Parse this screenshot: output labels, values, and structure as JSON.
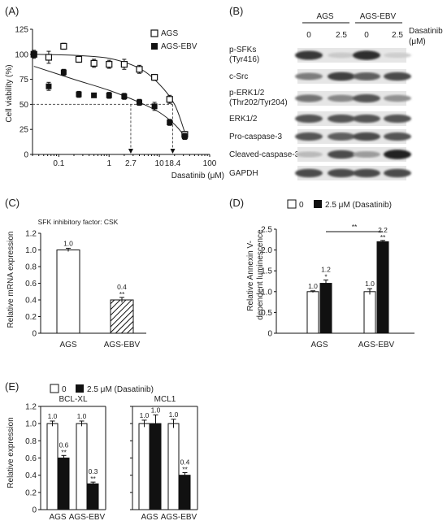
{
  "chart_data": [
    {
      "id": "A",
      "type": "scatter",
      "panel_label": "(A)",
      "xlabel": "Dasatinib (μM)",
      "ylabel": "Cell viability (%)",
      "x_scale": "log",
      "xlim": [
        0.03,
        100
      ],
      "ylim": [
        0,
        125
      ],
      "x_ticks": [
        "0.1",
        "1",
        "10",
        "100"
      ],
      "y_ticks": [
        "0",
        "25",
        "50",
        "75",
        "100",
        "125"
      ],
      "legend": [
        "AGS",
        "AGS-EBV"
      ],
      "legend_position": "top-right",
      "series": [
        {
          "name": "AGS",
          "marker": "open-square",
          "x": [
            0.032,
            0.063,
            0.125,
            0.25,
            0.5,
            1,
            2,
            4,
            8,
            16,
            32
          ],
          "y": [
            100,
            97,
            108,
            95,
            91,
            90,
            90,
            85,
            77,
            55,
            20
          ],
          "err": [
            4,
            6,
            3,
            3,
            4,
            4,
            5,
            4,
            3,
            4,
            3
          ]
        },
        {
          "name": "AGS-EBV",
          "marker": "filled-square",
          "x": [
            0.032,
            0.063,
            0.125,
            0.25,
            0.5,
            1,
            2,
            4,
            8,
            16,
            32
          ],
          "y": [
            100,
            68,
            82,
            60,
            59,
            59,
            58,
            52,
            48,
            32,
            18
          ],
          "err": [
            3,
            4,
            3,
            3,
            2,
            3,
            3,
            3,
            4,
            3,
            3
          ]
        }
      ],
      "annotations": [
        {
          "text": "2.7",
          "x": 2.7,
          "y": 50
        },
        {
          "text": "18.4",
          "x": 18.4,
          "y": 50
        }
      ]
    },
    {
      "id": "C",
      "type": "bar",
      "panel_label": "(C)",
      "title": "SFK inhibitory factor: CSK",
      "ylabel": "Relative mRNA expression",
      "categories": [
        "AGS",
        "AGS-EBV"
      ],
      "values": [
        1.0,
        0.4
      ],
      "errors": [
        0.02,
        0.03
      ],
      "value_labels": [
        "1.0",
        "0.4"
      ],
      "significance": [
        "",
        "**"
      ],
      "ylim": [
        0,
        1.2
      ],
      "y_ticks": [
        "0",
        "0.2",
        "0.4",
        "0.6",
        "0.8",
        "1.0",
        "1.2"
      ]
    },
    {
      "id": "D",
      "type": "bar",
      "panel_label": "(D)",
      "ylabel": "Relative Annexin V-dependent luminescence",
      "legend": [
        "0",
        "2.5 μM (Dasatinib)"
      ],
      "legend_position": "top",
      "categories": [
        "AGS",
        "AGS-EBV"
      ],
      "series": [
        {
          "name": "0",
          "values": [
            1.0,
            1.0
          ],
          "errors": [
            0.02,
            0.07
          ],
          "labels": [
            "1.0",
            "1.0"
          ],
          "sig": [
            "",
            ""
          ]
        },
        {
          "name": "2.5 μM (Dasatinib)",
          "values": [
            1.2,
            2.2
          ],
          "errors": [
            0.08,
            0.03
          ],
          "labels": [
            "1.2",
            "2.2"
          ],
          "sig": [
            "*",
            "**"
          ]
        }
      ],
      "bracket": "**",
      "ylim": [
        0,
        2.5
      ],
      "y_ticks": [
        "0",
        "0.5",
        "1.0",
        "1.5",
        "2.0",
        "2.5"
      ]
    },
    {
      "id": "E",
      "type": "bar",
      "panel_label": "(E)",
      "ylabel": "Relative expression",
      "legend": [
        "0",
        "2.5 μM (Dasatinib)"
      ],
      "legend_position": "top",
      "ylim": [
        0,
        1.2
      ],
      "y_ticks": [
        "0",
        "0.2",
        "0.4",
        "0.6",
        "0.8",
        "1.0",
        "1.2"
      ],
      "subplots": [
        {
          "title": "BCL-XL",
          "categories": [
            "AGS",
            "AGS-EBV"
          ],
          "series": [
            {
              "name": "0",
              "values": [
                1.0,
                1.0
              ],
              "errors": [
                0.03,
                0.03
              ],
              "labels": [
                "1.0",
                "1.0"
              ],
              "sig": [
                "",
                ""
              ]
            },
            {
              "name": "2.5 μM (Dasatinib)",
              "values": [
                0.6,
                0.3
              ],
              "errors": [
                0.03,
                0.02
              ],
              "labels": [
                "0.6",
                "0.3"
              ],
              "sig": [
                "**",
                "**"
              ]
            }
          ]
        },
        {
          "title": "MCL1",
          "categories": [
            "AGS",
            "AGS-EBV"
          ],
          "series": [
            {
              "name": "0",
              "values": [
                1.0,
                1.0
              ],
              "errors": [
                0.04,
                0.05
              ],
              "labels": [
                "1.0",
                "1.0"
              ],
              "sig": [
                "",
                ""
              ]
            },
            {
              "name": "2.5 μM (Dasatinib)",
              "values": [
                1.0,
                0.4
              ],
              "errors": [
                0.1,
                0.03
              ],
              "labels": [
                "1.0",
                "0.4"
              ],
              "sig": [
                "",
                "**"
              ]
            }
          ]
        }
      ]
    }
  ],
  "western_blot": {
    "panel_label": "(B)",
    "groups": [
      "AGS",
      "AGS-EBV"
    ],
    "lane_doses": [
      "0",
      "2.5",
      "0",
      "2.5"
    ],
    "dose_label_1": "Dasatinib",
    "dose_label_2": "(μM)",
    "rows": [
      {
        "label": "p-SFKs",
        "label2": "(Tyr416)",
        "bands": [
          0.85,
          0.12,
          0.9,
          0.1
        ]
      },
      {
        "label": "c-Src",
        "label2": "",
        "bands": [
          0.5,
          0.8,
          0.65,
          0.75
        ]
      },
      {
        "label": "p-ERK1/2",
        "label2": "(Thr202/Tyr204)",
        "bands": [
          0.55,
          0.45,
          0.7,
          0.4
        ]
      },
      {
        "label": "ERK1/2",
        "label2": "",
        "bands": [
          0.7,
          0.7,
          0.7,
          0.7
        ]
      },
      {
        "label": "Pro-caspase-3",
        "label2": "",
        "bands": [
          0.7,
          0.65,
          0.75,
          0.7
        ]
      },
      {
        "label": "Cleaved-caspase-3",
        "label2": "",
        "bands": [
          0.2,
          0.75,
          0.35,
          0.95
        ]
      },
      {
        "label": "GAPDH",
        "label2": "",
        "bands": [
          0.75,
          0.75,
          0.75,
          0.75
        ]
      }
    ]
  }
}
